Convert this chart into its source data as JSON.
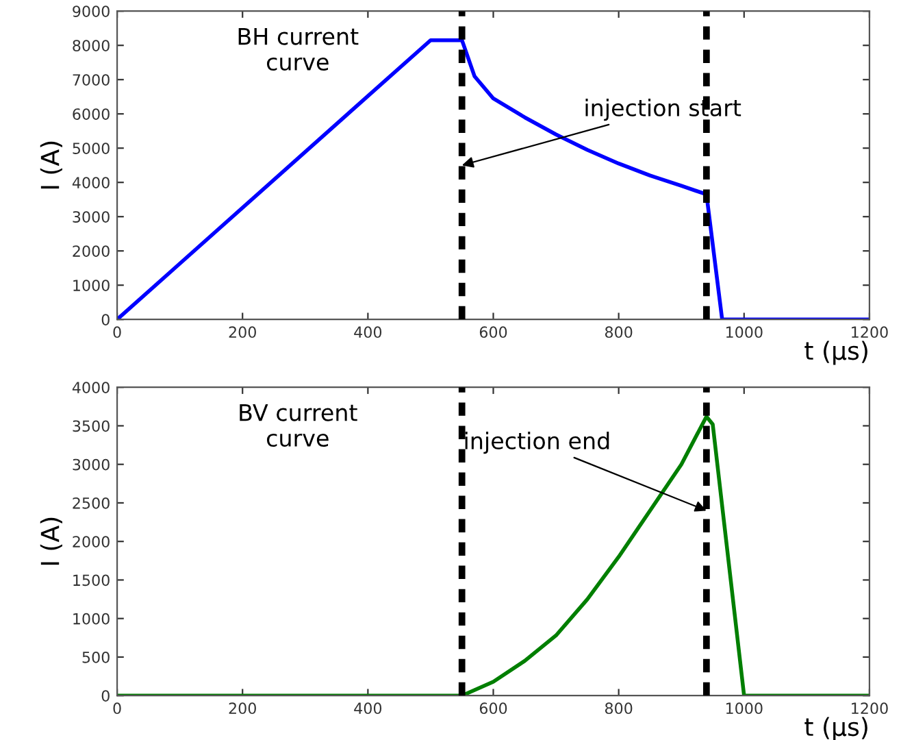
{
  "chart_data": [
    {
      "type": "line",
      "xlabel": "t (µs)",
      "ylabel": "I (A)",
      "xlim": [
        0,
        1200
      ],
      "xticks": [
        0,
        200,
        400,
        600,
        800,
        1000,
        1200
      ],
      "ylim": [
        0,
        9000
      ],
      "yticks": [
        0,
        1000,
        2000,
        3000,
        4000,
        5000,
        6000,
        7000,
        8000,
        9000
      ],
      "grid": false,
      "legend": false,
      "series": [
        {
          "color": "#0000ff",
          "x": [
            0,
            500,
            550,
            570,
            600,
            650,
            700,
            750,
            800,
            850,
            900,
            940,
            965,
            1200
          ],
          "values": [
            0,
            8150,
            8150,
            7100,
            6450,
            5900,
            5400,
            4950,
            4550,
            4200,
            3900,
            3650,
            0,
            0
          ]
        }
      ],
      "ref_lines": [
        {
          "axis": "x",
          "value": 550,
          "color": "#000000",
          "line_style": "dashed"
        },
        {
          "axis": "x",
          "value": 940,
          "color": "#000000",
          "line_style": "dashed"
        }
      ],
      "annotations": [
        "BH current\ncurve",
        {
          "text": "injection start",
          "x": 550,
          "y": 4500
        }
      ]
    },
    {
      "type": "line",
      "xlabel": "t (µs)",
      "ylabel": "I (A)",
      "xlim": [
        0,
        1200
      ],
      "xticks": [
        0,
        200,
        400,
        600,
        800,
        1000,
        1200
      ],
      "ylim": [
        0,
        4000
      ],
      "yticks": [
        0,
        500,
        1000,
        1500,
        2000,
        2500,
        3000,
        3500,
        4000
      ],
      "grid": false,
      "legend": false,
      "series": [
        {
          "color": "#007f00",
          "x": [
            0,
            550,
            600,
            650,
            700,
            750,
            800,
            850,
            900,
            940,
            950,
            1000,
            1200
          ],
          "values": [
            0,
            0,
            180,
            450,
            780,
            1250,
            1800,
            2400,
            3000,
            3620,
            3520,
            0,
            0
          ]
        }
      ],
      "ref_lines": [
        {
          "axis": "x",
          "value": 550,
          "color": "#000000",
          "line_style": "dashed"
        },
        {
          "axis": "x",
          "value": 940,
          "color": "#000000",
          "line_style": "dashed"
        }
      ],
      "annotations": [
        "BV current\ncurve",
        {
          "text": "injection end",
          "x": 940,
          "y": 2400
        }
      ]
    }
  ]
}
